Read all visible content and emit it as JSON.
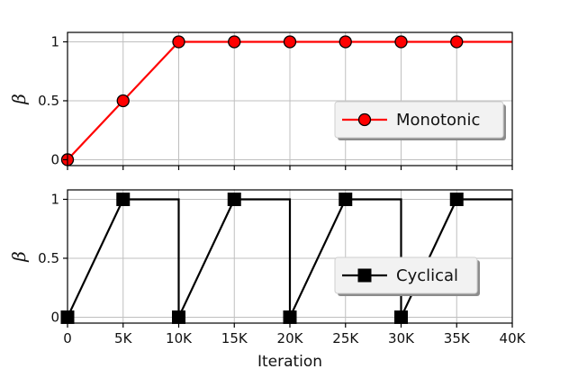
{
  "chart_data": [
    {
      "type": "line",
      "xlabel": "",
      "ylabel": "β",
      "xlim": [
        0,
        40000
      ],
      "ylim": [
        -0.05,
        1.08
      ],
      "yticks": [
        0,
        0.5,
        1
      ],
      "yticklabels": [
        "0",
        "0.5",
        "1"
      ],
      "grid": true,
      "legend_position": "center-right",
      "series": [
        {
          "name": "Monotonic",
          "color": "#ff0000",
          "marker": "circle",
          "marker_color": "#ff0000",
          "line_x": [
            0,
            10000,
            40000
          ],
          "line_y": [
            0,
            1,
            1
          ],
          "marker_x": [
            0,
            5000,
            10000,
            15000,
            20000,
            25000,
            30000,
            35000
          ],
          "marker_y": [
            0,
            0.5,
            1,
            1,
            1,
            1,
            1,
            1
          ]
        }
      ]
    },
    {
      "type": "line",
      "xlabel": "Iteration",
      "ylabel": "β",
      "xlim": [
        0,
        40000
      ],
      "ylim": [
        -0.05,
        1.08
      ],
      "xticks": [
        0,
        5000,
        10000,
        15000,
        20000,
        25000,
        30000,
        35000,
        40000
      ],
      "xticklabels": [
        "0",
        "5K",
        "10K",
        "15K",
        "20K",
        "25K",
        "30K",
        "35K",
        "40K"
      ],
      "yticks": [
        0,
        0.5,
        1
      ],
      "yticklabels": [
        "0",
        "0.5",
        "1"
      ],
      "grid": true,
      "legend_position": "lower-right",
      "series": [
        {
          "name": "Cyclical",
          "color": "#000000",
          "marker": "square",
          "marker_color": "#000000",
          "line_x": [
            0,
            5000,
            10000,
            10000,
            15000,
            20000,
            20000,
            25000,
            30000,
            30000,
            35000,
            40000
          ],
          "line_y": [
            0,
            1,
            1,
            0,
            1,
            1,
            0,
            1,
            1,
            0,
            1,
            1
          ],
          "marker_x": [
            0,
            5000,
            10000,
            15000,
            20000,
            25000,
            30000,
            35000
          ],
          "marker_y": [
            0,
            1,
            0,
            1,
            0,
            1,
            0,
            1
          ]
        }
      ]
    }
  ]
}
